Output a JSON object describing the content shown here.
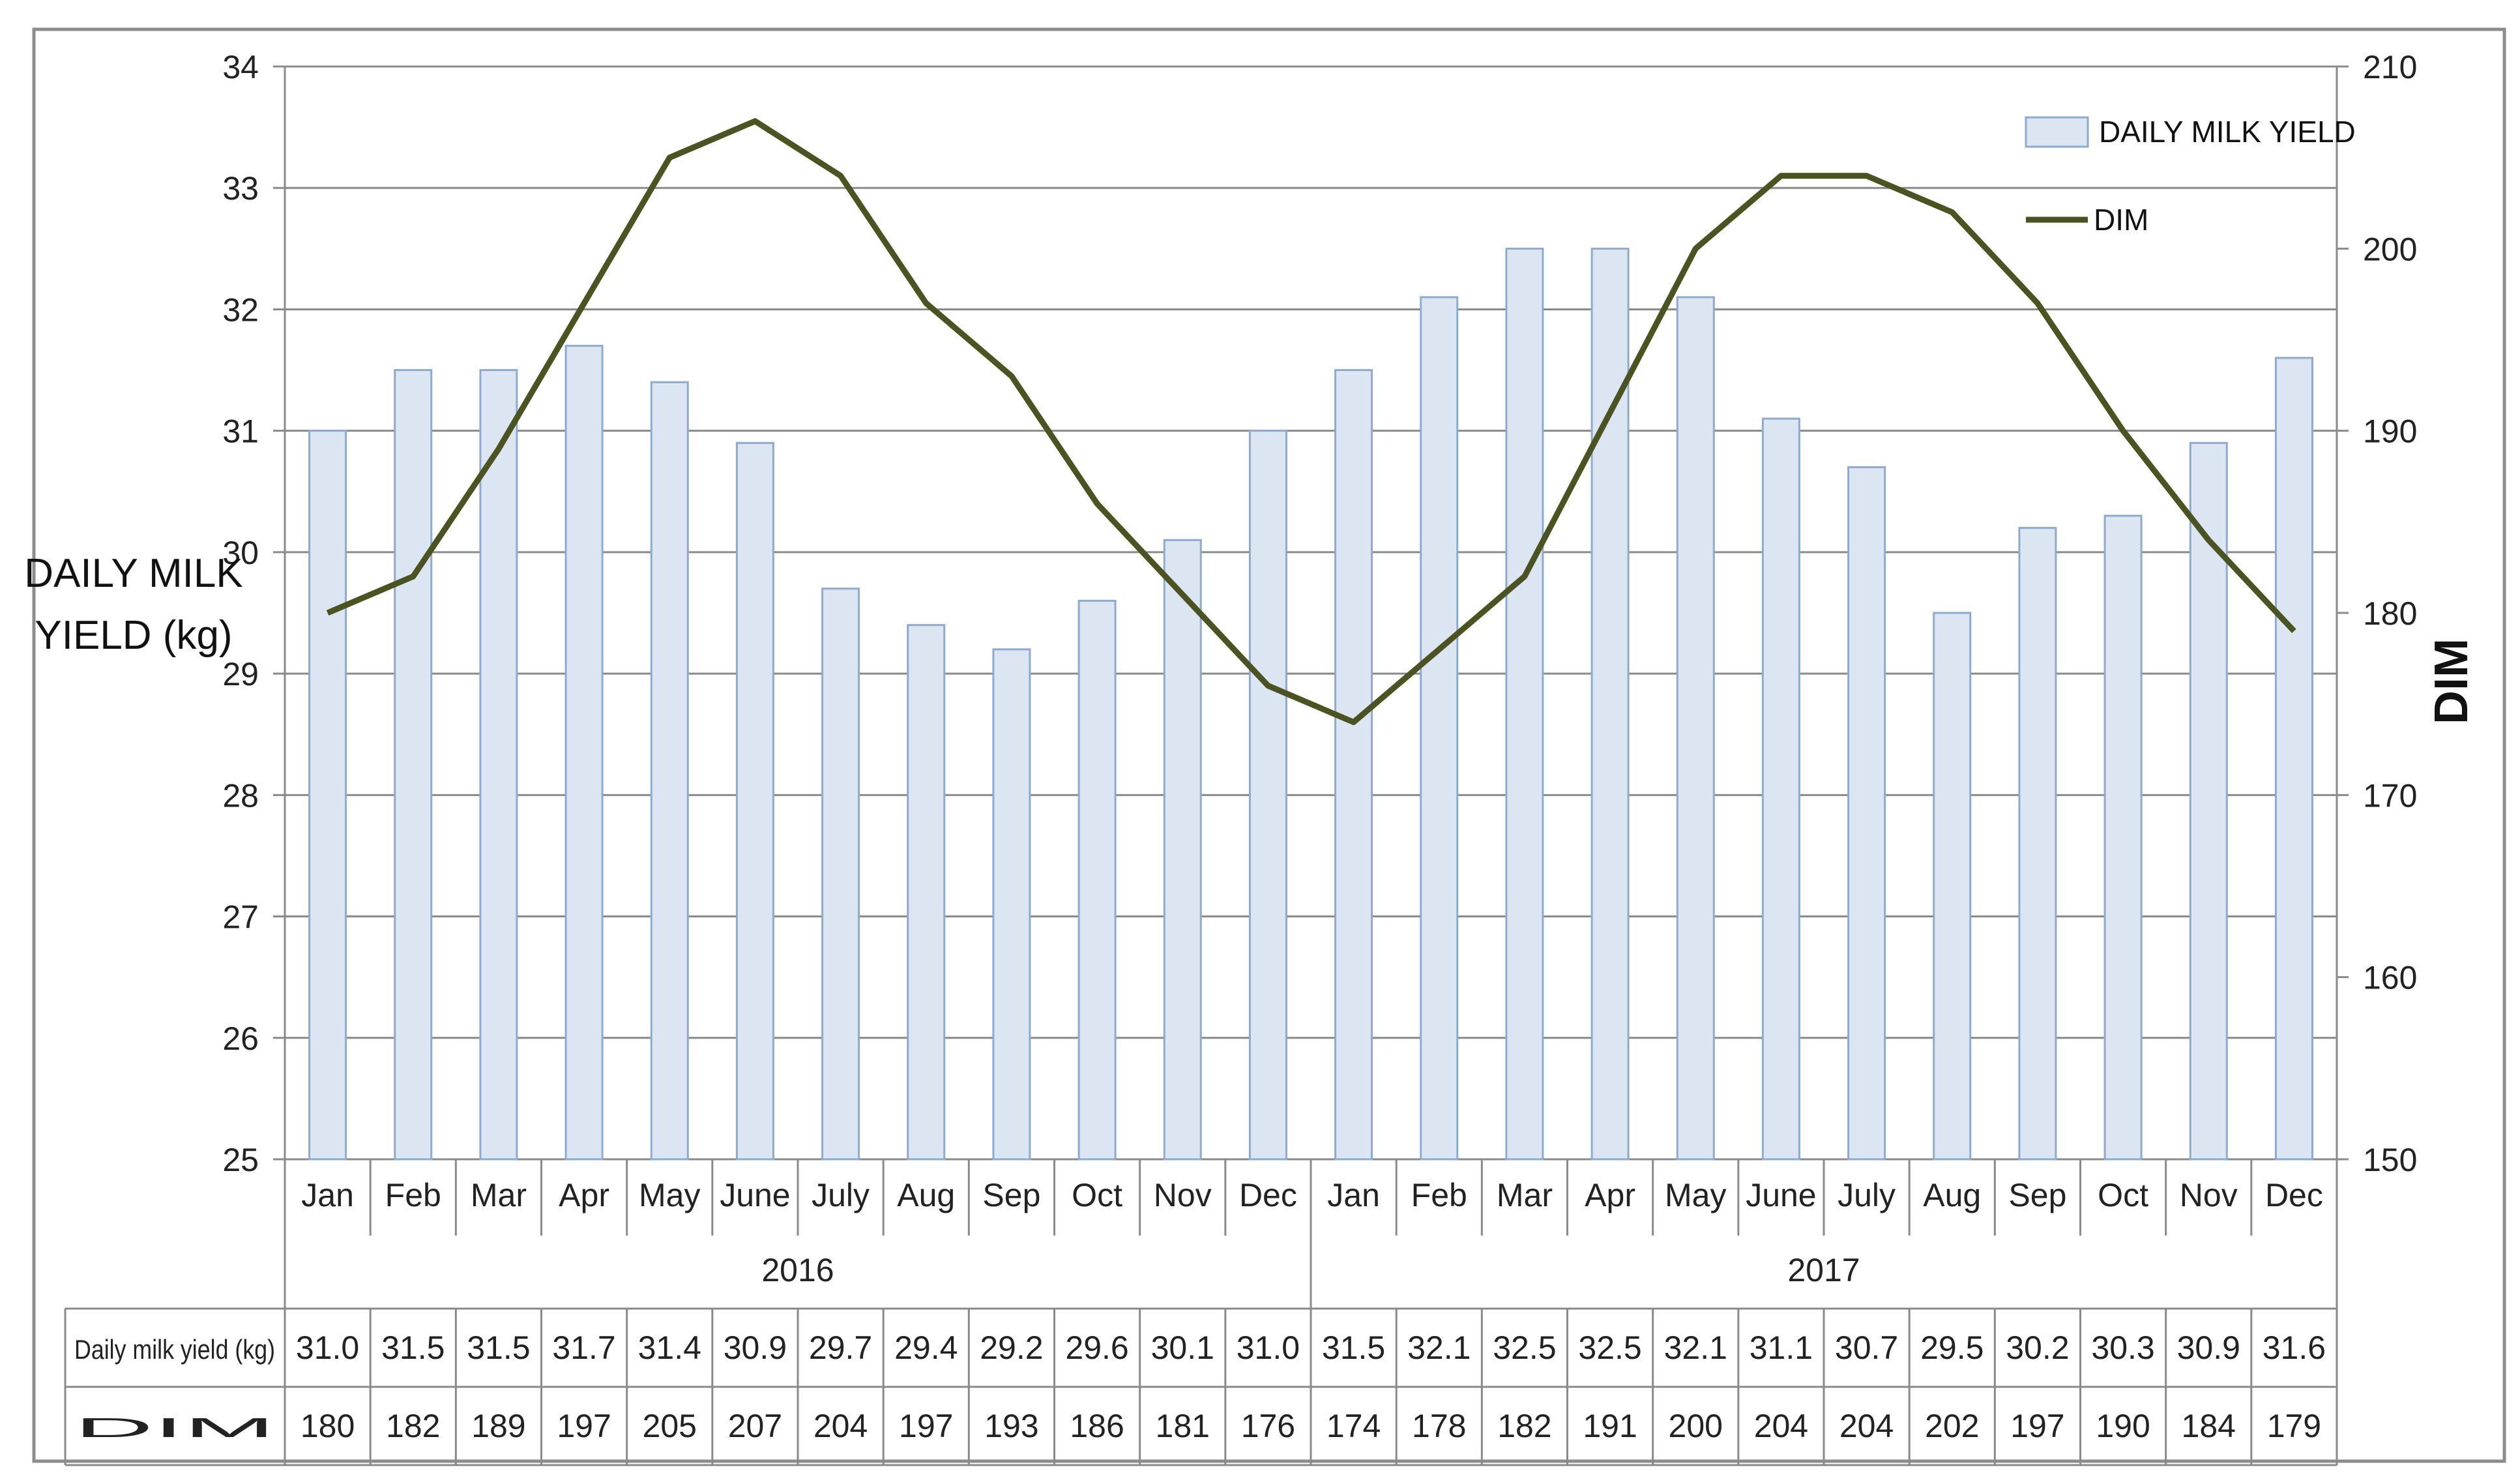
{
  "chart_data": {
    "type": "bar",
    "categories": [
      "Jan",
      "Feb",
      "Mar",
      "Apr",
      "May",
      "June",
      "July",
      "Aug",
      "Sep",
      "Oct",
      "Nov",
      "Dec",
      "Jan",
      "Feb",
      "Mar",
      "Apr",
      "May",
      "June",
      "July",
      "Aug",
      "Sep",
      "Oct",
      "Nov",
      "Dec"
    ],
    "groups": [
      {
        "label": "2016",
        "count": 12
      },
      {
        "label": "2017",
        "count": 12
      }
    ],
    "series": [
      {
        "name": "DAILY MILK YIELD",
        "type": "bar",
        "axis": "left",
        "color": "#dce6f2",
        "edge_color": "#8eaad0",
        "values": [
          31.0,
          31.5,
          31.5,
          31.7,
          31.4,
          30.9,
          29.7,
          29.4,
          29.2,
          29.6,
          30.1,
          31.0,
          31.5,
          32.1,
          32.5,
          32.5,
          32.1,
          31.1,
          30.7,
          29.5,
          30.2,
          30.3,
          30.9,
          31.6
        ]
      },
      {
        "name": "DIM",
        "type": "line",
        "axis": "right",
        "color": "#4b5320",
        "values": [
          180,
          182,
          189,
          197,
          205,
          207,
          204,
          197,
          193,
          186,
          181,
          176,
          174,
          178,
          182,
          191,
          200,
          204,
          204,
          202,
          197,
          190,
          184,
          179
        ]
      }
    ],
    "ylabel": "DAILY MILK YIELD (kg)",
    "ylabel_lines": [
      "DAILY MILK",
      "YIELD (kg)"
    ],
    "ylim": [
      25,
      34
    ],
    "yticks": [
      25,
      26,
      27,
      28,
      29,
      30,
      31,
      32,
      33,
      34
    ],
    "y2label": "DIM",
    "y2lim": [
      150,
      210
    ],
    "y2ticks": [
      150,
      160,
      170,
      180,
      190,
      200,
      210
    ],
    "grid": true,
    "legend_position": "top-right",
    "table": {
      "rows": [
        {
          "label": "Daily milk yield (kg)",
          "values": [
            "31.0",
            "31.5",
            "31.5",
            "31.7",
            "31.4",
            "30.9",
            "29.7",
            "29.4",
            "29.2",
            "29.6",
            "30.1",
            "31.0",
            "31.5",
            "32.1",
            "32.5",
            "32.5",
            "32.1",
            "31.1",
            "30.7",
            "29.5",
            "30.2",
            "30.3",
            "30.9",
            "31.6"
          ]
        },
        {
          "label": "DIM",
          "values": [
            "180",
            "182",
            "189",
            "197",
            "205",
            "207",
            "204",
            "197",
            "193",
            "186",
            "181",
            "176",
            "174",
            "178",
            "182",
            "191",
            "200",
            "204",
            "204",
            "202",
            "197",
            "190",
            "184",
            "179"
          ]
        }
      ]
    }
  }
}
